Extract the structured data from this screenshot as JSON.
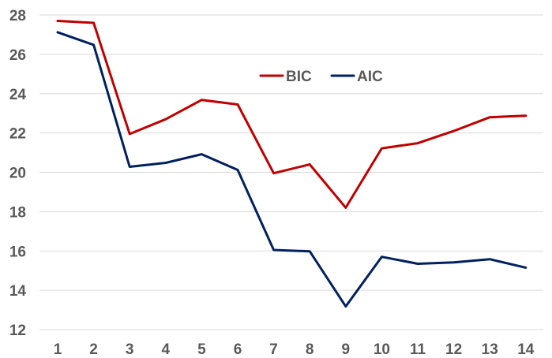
{
  "chart_data": {
    "type": "line",
    "title": "",
    "xlabel": "",
    "ylabel": "",
    "x": [
      1,
      2,
      3,
      4,
      5,
      6,
      7,
      8,
      9,
      10,
      11,
      12,
      13,
      14
    ],
    "ylim": [
      12,
      28
    ],
    "yticks": [
      12,
      14,
      16,
      18,
      20,
      22,
      24,
      26,
      28
    ],
    "grid": "horizontal",
    "legend_position": "top-center",
    "series": [
      {
        "name": "BIC",
        "color": "#c00000",
        "values": [
          27.7,
          27.6,
          21.95,
          22.7,
          23.68,
          23.45,
          19.95,
          20.4,
          18.2,
          21.22,
          21.48,
          22.1,
          22.8,
          22.88
        ]
      },
      {
        "name": "AIC",
        "color": "#002060",
        "values": [
          27.12,
          26.48,
          20.28,
          20.48,
          20.92,
          20.12,
          16.05,
          15.98,
          13.18,
          15.7,
          15.35,
          15.42,
          15.58,
          15.15
        ]
      }
    ]
  }
}
